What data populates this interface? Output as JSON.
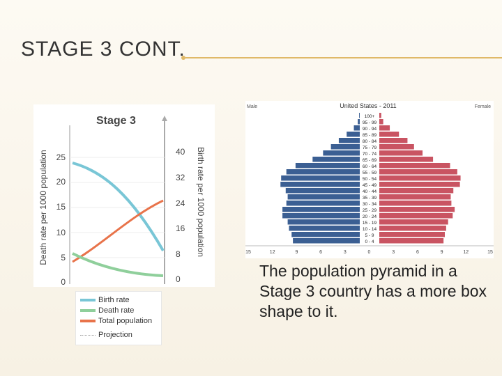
{
  "slide": {
    "title": "STAGE 3 CONT.",
    "body": "The population pyramid in a Stage 3 country has a more box shape to it."
  },
  "stage_chart": {
    "title": "Stage 3",
    "left_axis_label": "Death rate per 1000 population",
    "right_axis_label": "Birth rate per 1000 population",
    "left_ticks": [
      "25",
      "20",
      "15",
      "10",
      "5",
      "0"
    ],
    "right_ticks": [
      "40",
      "32",
      "24",
      "16",
      "8",
      "0"
    ],
    "legend": {
      "birth": "Birth rate",
      "death": "Death rate",
      "total": "Total population",
      "projection": "Projection"
    },
    "colors": {
      "birth": "#79c6d6",
      "death": "#8fcf9b",
      "total": "#e8734a"
    }
  },
  "pyramid": {
    "title": "United States - 2011",
    "male_label": "Male",
    "female_label": "Female",
    "ages": [
      "100+",
      "95 - 99",
      "90 - 94",
      "85 - 89",
      "80 - 84",
      "75 - 79",
      "70 - 74",
      "65 - 69",
      "60 - 64",
      "55 - 59",
      "50 - 54",
      "45 - 49",
      "40 - 44",
      "35 - 39",
      "30 - 34",
      "25 - 29",
      "20 - 24",
      "15 - 19",
      "10 - 14",
      "5 - 9",
      "0 - 4"
    ],
    "male": [
      0.1,
      0.3,
      0.9,
      2.0,
      3.2,
      4.4,
      5.6,
      7.2,
      9.8,
      11.2,
      12.0,
      12.1,
      11.3,
      11.0,
      11.2,
      11.8,
      11.8,
      11.0,
      10.8,
      10.4,
      10.2
    ],
    "female": [
      0.3,
      0.6,
      1.6,
      3.0,
      4.3,
      5.3,
      6.6,
      8.2,
      10.8,
      11.9,
      12.4,
      12.3,
      11.3,
      10.9,
      11.0,
      11.5,
      11.2,
      10.5,
      10.2,
      10.0,
      9.8
    ],
    "x_ticks": [
      "15",
      "12",
      "9",
      "6",
      "3",
      "0",
      "3",
      "6",
      "9",
      "12",
      "15"
    ],
    "colors": {
      "male": "#3b5f93",
      "female": "#c95462"
    }
  }
}
